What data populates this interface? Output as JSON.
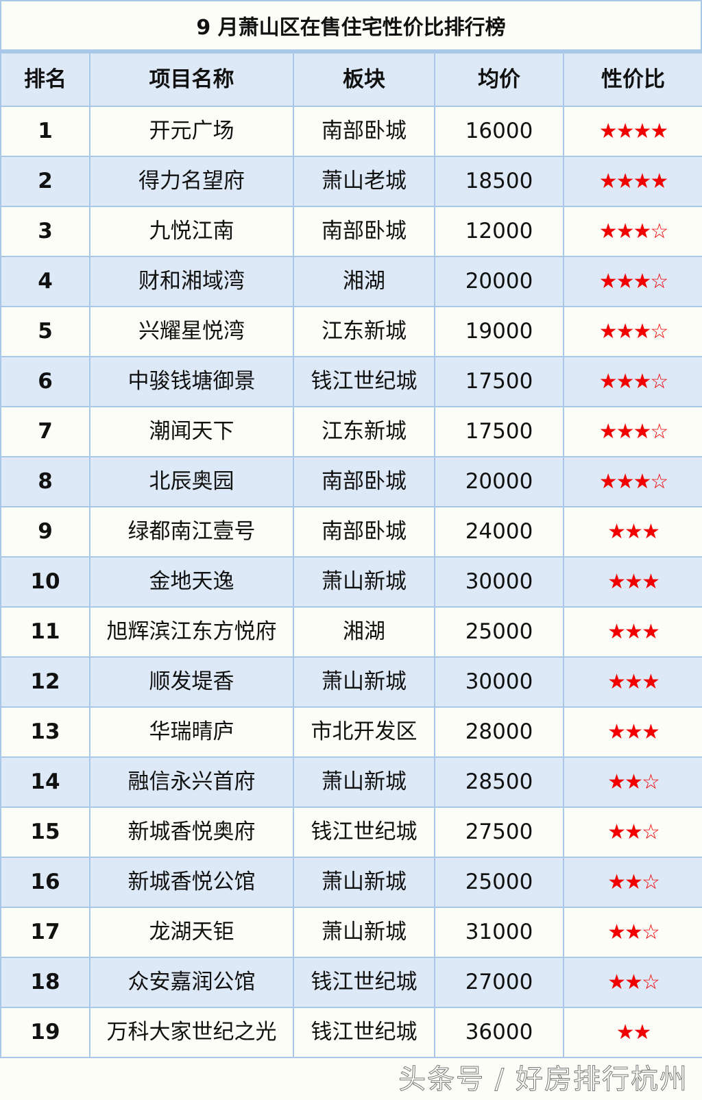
{
  "title": "9 月萧山区在售住宅性价比排行榜",
  "headers": [
    "排名",
    "项目名称",
    "板块",
    "均价",
    "性价比"
  ],
  "rows": [
    [
      "1",
      "开元广场",
      "南部卧城",
      "16000",
      "★★★★"
    ],
    [
      "2",
      "得力名望府",
      "萧山老城",
      "18500",
      "★★★★"
    ],
    [
      "3",
      "九悦江南",
      "南部卧城",
      "12000",
      "★★★☆"
    ],
    [
      "4",
      "财和湘域湾",
      "湘湖",
      "20000",
      "★★★☆"
    ],
    [
      "5",
      "兴耀星悦湾",
      "江东新城",
      "19000",
      "★★★☆"
    ],
    [
      "6",
      "中骏钱塘御景",
      "钱江世纪城",
      "17500",
      "★★★☆"
    ],
    [
      "7",
      "潮闻天下",
      "江东新城",
      "17500",
      "★★★☆"
    ],
    [
      "8",
      "北辰奥园",
      "南部卧城",
      "20000",
      "★★★☆"
    ],
    [
      "9",
      "绿都南江壹号",
      "南部卧城",
      "24000",
      "★★★"
    ],
    [
      "10",
      "金地天逸",
      "萧山新城",
      "30000",
      "★★★"
    ],
    [
      "11",
      "旭辉滨江东方悦府",
      "湘湖",
      "25000",
      "★★★"
    ],
    [
      "12",
      "顺发堤香",
      "萧山新城",
      "30000",
      "★★★"
    ],
    [
      "13",
      "华瑞晴庐",
      "市北开发区",
      "28000",
      "★★★"
    ],
    [
      "14",
      "融信永兴首府",
      "萧山新城",
      "28500",
      "★★☆"
    ],
    [
      "15",
      "新城香悦奥府",
      "钱江世纪城",
      "27500",
      "★★☆"
    ],
    [
      "16",
      "新城香悦公馆",
      "萧山新城",
      "25000",
      "★★☆"
    ],
    [
      "17",
      "龙湖天钜",
      "萧山新城",
      "31000",
      "★★☆"
    ],
    [
      "18",
      "众安嘉润公馆",
      "钱江世纪城",
      "27000",
      "★★☆"
    ],
    [
      "19",
      "万科大家世纪之光",
      "钱江世纪城",
      "36000",
      "★★"
    ]
  ],
  "watermark": "头条号 / 好房排行杭州",
  "colors": {
    "border": "#a9c8e8",
    "header_bg": "#dde9f6",
    "even_row_bg": "#dde9f6",
    "odd_row_bg": "#fdfdf8",
    "star": "#f20000"
  }
}
